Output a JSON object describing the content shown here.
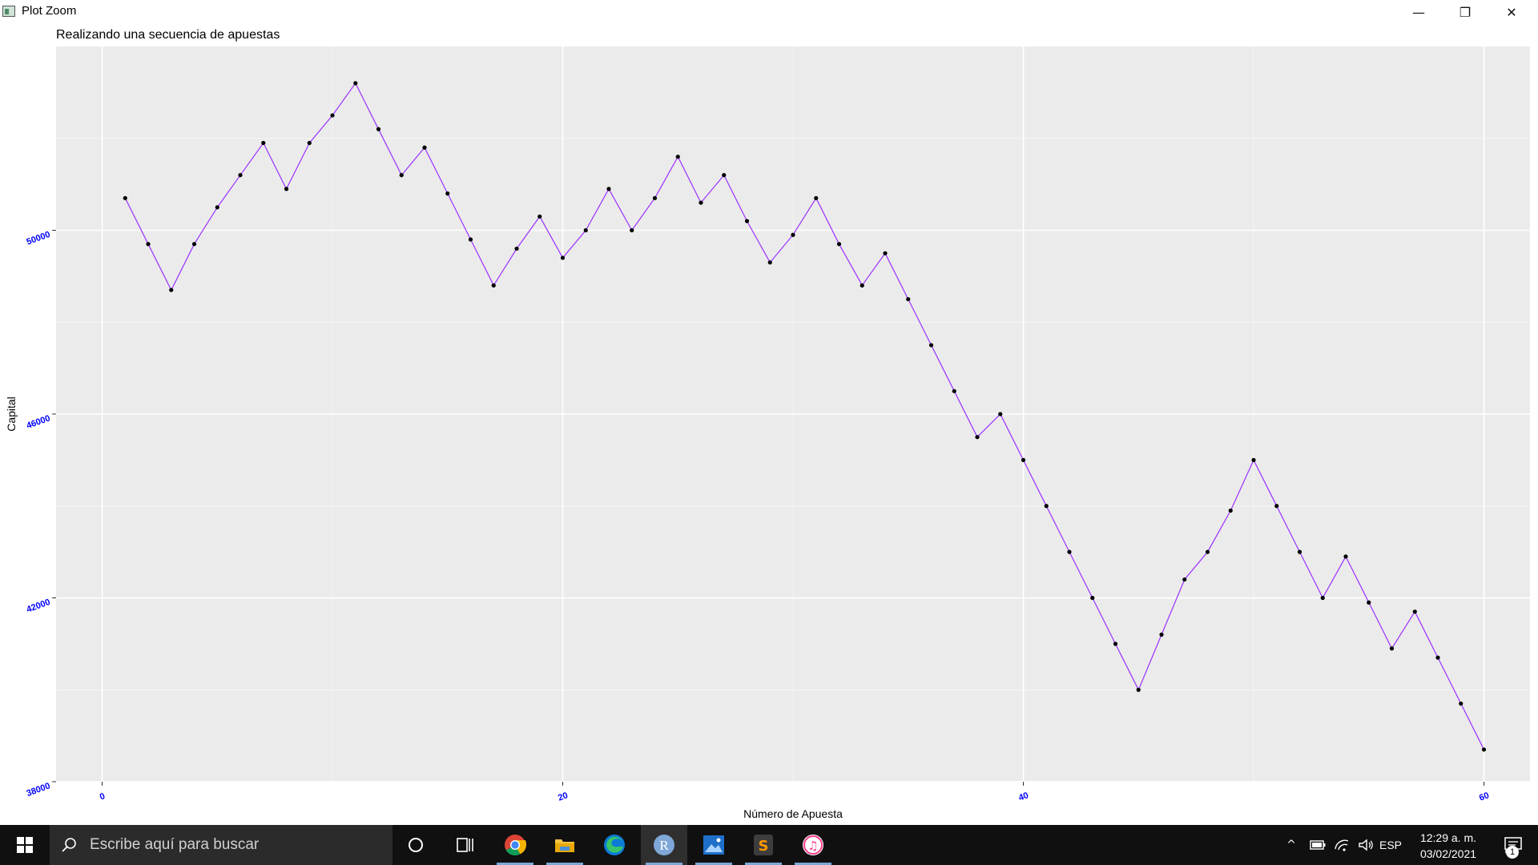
{
  "window": {
    "title": "Plot Zoom",
    "controls": {
      "minimize": "—",
      "maximize": "❐",
      "close": "✕"
    }
  },
  "plot": {
    "title": "Realizando una secuencia de apuestas",
    "xlabel": "Número de Apuesta",
    "ylabel": "Capital"
  },
  "chart_data": {
    "type": "line",
    "title": "Realizando una secuencia de apuestas",
    "xlabel": "Número de Apuesta",
    "ylabel": "Capital",
    "xlim": [
      -2,
      62
    ],
    "ylim": [
      38000,
      54000
    ],
    "x_ticks": [
      0,
      20,
      40,
      60
    ],
    "x_tick_labels": [
      "0",
      "20",
      "40",
      "60"
    ],
    "y_ticks": [
      38000,
      42000,
      46000,
      50000
    ],
    "y_tick_labels": [
      "38000",
      "42000",
      "46000",
      "50000"
    ],
    "grid": true,
    "line_color": "#9b30ff",
    "point_color": "#000000",
    "panel_color": "#ebebeb",
    "tick_label_color": "#0000ff",
    "x": [
      1,
      2,
      3,
      4,
      5,
      6,
      7,
      8,
      9,
      10,
      11,
      12,
      13,
      14,
      15,
      16,
      17,
      18,
      19,
      20,
      21,
      22,
      23,
      24,
      25,
      26,
      27,
      28,
      29,
      30,
      31,
      32,
      33,
      34,
      35,
      36,
      37,
      38,
      39,
      40,
      41,
      42,
      43,
      44,
      45,
      46,
      47,
      48,
      49,
      50,
      51,
      52,
      53,
      54,
      55,
      56,
      57,
      58,
      59,
      60
    ],
    "values": [
      50700,
      49700,
      48700,
      49700,
      50500,
      51200,
      51900,
      50900,
      51900,
      52500,
      53200,
      52200,
      51200,
      51800,
      50800,
      49800,
      48800,
      49600,
      50300,
      49400,
      50000,
      50900,
      50000,
      50700,
      51600,
      50600,
      51200,
      50200,
      49300,
      49900,
      50700,
      49700,
      48800,
      49500,
      48500,
      47500,
      46500,
      45500,
      46000,
      45000,
      44000,
      43000,
      42000,
      41000,
      40000,
      41200,
      42400,
      43000,
      43900,
      45000,
      44000,
      43000,
      42000,
      42900,
      41900,
      40900,
      41700,
      40700,
      39700,
      38700
    ]
  },
  "taskbar": {
    "search_placeholder": "Escribe aquí para buscar",
    "apps": [
      {
        "name": "cortana",
        "icon": "circle-icon"
      },
      {
        "name": "task-view",
        "icon": "task-view-icon"
      },
      {
        "name": "chrome",
        "icon": "chrome-icon"
      },
      {
        "name": "file-explorer",
        "icon": "folder-icon"
      },
      {
        "name": "edge",
        "icon": "edge-icon"
      },
      {
        "name": "r",
        "icon": "r-icon",
        "label": "R"
      },
      {
        "name": "photos",
        "icon": "photos-icon"
      },
      {
        "name": "sublime-text",
        "icon": "sublime-icon",
        "label": "S"
      },
      {
        "name": "itunes",
        "icon": "itunes-icon",
        "label": "♫"
      }
    ],
    "tray": {
      "chevron": "^",
      "language": "ESP",
      "time": "12:29 a. m.",
      "date": "03/02/2021",
      "notifications": "1"
    }
  }
}
